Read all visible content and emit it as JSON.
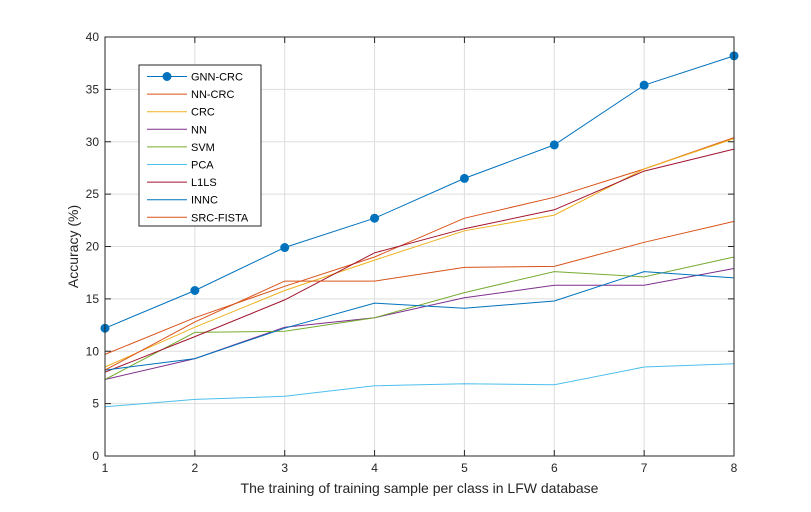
{
  "chart_data": {
    "type": "line",
    "title": "",
    "xlabel": "The training of training sample per class in LFW database",
    "ylabel": "Accuracy (%)",
    "xlim": [
      1,
      8
    ],
    "ylim": [
      0,
      40
    ],
    "xticks": [
      1,
      2,
      3,
      4,
      5,
      6,
      7,
      8
    ],
    "yticks": [
      0,
      5,
      10,
      15,
      20,
      25,
      30,
      35,
      40
    ],
    "grid": true,
    "legend_position": "top-left",
    "x": [
      1,
      2,
      3,
      4,
      5,
      6,
      7,
      8
    ],
    "series": [
      {
        "name": "GNN-CRC",
        "color": "#0072BD",
        "marker": "circle",
        "values": [
          12.2,
          15.8,
          19.9,
          22.7,
          26.5,
          29.7,
          35.4,
          38.2
        ]
      },
      {
        "name": "NN-CRC",
        "color": "#D95319",
        "values": [
          9.7,
          13.2,
          16.2,
          19.0,
          22.7,
          24.7,
          27.4,
          30.4
        ]
      },
      {
        "name": "CRC",
        "color": "#EDB120",
        "values": [
          8.5,
          12.3,
          15.8,
          18.7,
          21.5,
          23.0,
          27.4,
          30.3
        ]
      },
      {
        "name": "NN",
        "color": "#7E2F8E",
        "values": [
          7.3,
          9.3,
          12.3,
          13.2,
          15.1,
          16.3,
          16.3,
          17.9
        ]
      },
      {
        "name": "SVM",
        "color": "#77AC30",
        "values": [
          7.3,
          11.8,
          11.9,
          13.2,
          15.6,
          17.6,
          17.1,
          19.0
        ]
      },
      {
        "name": "PCA",
        "color": "#4DBEEE",
        "values": [
          4.7,
          5.4,
          5.7,
          6.7,
          6.9,
          6.8,
          8.5,
          8.8
        ]
      },
      {
        "name": "L1LS",
        "color": "#A2142F",
        "values": [
          8.0,
          11.4,
          14.9,
          19.4,
          21.7,
          23.5,
          27.2,
          29.3
        ]
      },
      {
        "name": "INNC",
        "color": "#0072BD",
        "values": [
          8.2,
          9.3,
          12.2,
          14.6,
          14.1,
          14.8,
          17.6,
          17.0
        ]
      },
      {
        "name": "SRC-FISTA",
        "color": "#D95319",
        "values": [
          8.2,
          12.8,
          16.7,
          16.7,
          18.0,
          18.1,
          20.4,
          22.4
        ]
      }
    ]
  }
}
